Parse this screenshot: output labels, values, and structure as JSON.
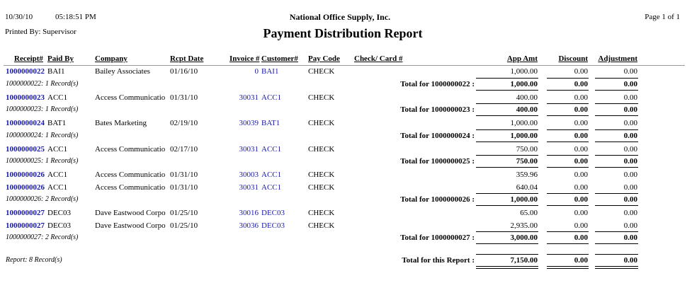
{
  "header": {
    "date": "10/30/10",
    "time": "05:18:51 PM",
    "company": "National Office Supply, Inc.",
    "page": "Page 1 of 1",
    "printed_by": "Printed By: Supervisor",
    "title": "Payment Distribution Report"
  },
  "columns": {
    "receipt": "Receipt#",
    "paid_by": "Paid By",
    "company": "Company",
    "date": "Rcpt Date",
    "invoice": "Invoice #",
    "customer": "Customer#",
    "pay_code": "Pay Code",
    "check": "Check/ Card #",
    "app_amt": "App Amt",
    "discount": "Discount",
    "adjustment": "Adjustment"
  },
  "groups": [
    {
      "rows": [
        {
          "receipt": "1000000022",
          "paid_by": "BAI1",
          "company": "Bailey Associates",
          "date": "01/16/10",
          "invoice": "0",
          "customer": "BAI1",
          "pay_code": "CHECK",
          "app_amt": "1,000.00",
          "discount": "0.00",
          "adjustment": "0.00"
        }
      ],
      "summary": {
        "records": "1000000022: 1 Record(s)",
        "label": "Total for 1000000022 :",
        "app_amt": "1,000.00",
        "discount": "0.00",
        "adjustment": "0.00"
      }
    },
    {
      "rows": [
        {
          "receipt": "1000000023",
          "paid_by": "ACC1",
          "company": "Access Communicatio",
          "date": "01/31/10",
          "invoice": "30031",
          "customer": "ACC1",
          "pay_code": "CHECK",
          "app_amt": "400.00",
          "discount": "0.00",
          "adjustment": "0.00"
        }
      ],
      "summary": {
        "records": "1000000023: 1 Record(s)",
        "label": "Total for 1000000023 :",
        "app_amt": "400.00",
        "discount": "0.00",
        "adjustment": "0.00"
      }
    },
    {
      "rows": [
        {
          "receipt": "1000000024",
          "paid_by": "BAT1",
          "company": "Bates Marketing",
          "date": "02/19/10",
          "invoice": "30039",
          "customer": "BAT1",
          "pay_code": "CHECK",
          "app_amt": "1,000.00",
          "discount": "0.00",
          "adjustment": "0.00"
        }
      ],
      "summary": {
        "records": "1000000024: 1 Record(s)",
        "label": "Total for 1000000024 :",
        "app_amt": "1,000.00",
        "discount": "0.00",
        "adjustment": "0.00"
      }
    },
    {
      "rows": [
        {
          "receipt": "1000000025",
          "paid_by": "ACC1",
          "company": "Access Communicatio",
          "date": "02/17/10",
          "invoice": "30031",
          "customer": "ACC1",
          "pay_code": "CHECK",
          "app_amt": "750.00",
          "discount": "0.00",
          "adjustment": "0.00"
        }
      ],
      "summary": {
        "records": "1000000025: 1 Record(s)",
        "label": "Total for 1000000025 :",
        "app_amt": "750.00",
        "discount": "0.00",
        "adjustment": "0.00"
      }
    },
    {
      "rows": [
        {
          "receipt": "1000000026",
          "paid_by": "ACC1",
          "company": "Access Communicatio",
          "date": "01/31/10",
          "invoice": "30003",
          "customer": "ACC1",
          "pay_code": "CHECK",
          "app_amt": "359.96",
          "discount": "0.00",
          "adjustment": "0.00"
        },
        {
          "receipt": "1000000026",
          "paid_by": "ACC1",
          "company": "Access Communicatio",
          "date": "01/31/10",
          "invoice": "30031",
          "customer": "ACC1",
          "pay_code": "CHECK",
          "app_amt": "640.04",
          "discount": "0.00",
          "adjustment": "0.00"
        }
      ],
      "summary": {
        "records": "1000000026: 2 Record(s)",
        "label": "Total for 1000000026 :",
        "app_amt": "1,000.00",
        "discount": "0.00",
        "adjustment": "0.00"
      }
    },
    {
      "rows": [
        {
          "receipt": "1000000027",
          "paid_by": "DEC03",
          "company": "Dave Eastwood Corpo",
          "date": "01/25/10",
          "invoice": "30016",
          "customer": "DEC03",
          "pay_code": "CHECK",
          "app_amt": "65.00",
          "discount": "0.00",
          "adjustment": "0.00"
        },
        {
          "receipt": "1000000027",
          "paid_by": "DEC03",
          "company": "Dave Eastwood Corpo",
          "date": "01/25/10",
          "invoice": "30036",
          "customer": "DEC03",
          "pay_code": "CHECK",
          "app_amt": "2,935.00",
          "discount": "0.00",
          "adjustment": "0.00"
        }
      ],
      "summary": {
        "records": "1000000027: 2 Record(s)",
        "label": "Total for 1000000027 :",
        "app_amt": "3,000.00",
        "discount": "0.00",
        "adjustment": "0.00"
      }
    }
  ],
  "report_total": {
    "records": "Report: 8 Record(s)",
    "label": "Total for this Report :",
    "app_amt": "7,150.00",
    "discount": "0.00",
    "adjustment": "0.00"
  }
}
